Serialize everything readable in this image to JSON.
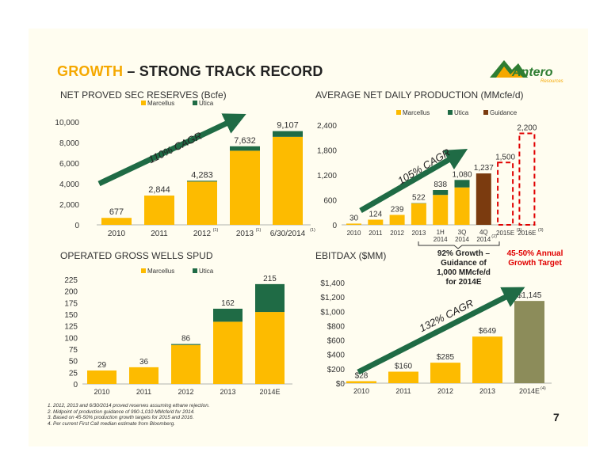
{
  "title": {
    "accent": "GROWTH",
    "rest": " – STRONG TRACK RECORD"
  },
  "logo": {
    "word": "Antero",
    "sub": "Resources"
  },
  "page_number": "7",
  "colors": {
    "marcellus": "#fdbb00",
    "utica": "#1f6b45",
    "guidance": "#7b3b0f",
    "target_red": "#e00000",
    "arrow": "#1f6b45"
  },
  "footnotes": [
    "1.  2012, 2013 and 6/30/2014 proved reserves assuming ethane rejection.",
    "2.  Midpoint of production guidance of 990-1,010 MMcfe/d for 2014.",
    "3.  Based on 45-50% production growth targets for 2015 and 2016.",
    "4.  Per current First Call median estimate from Bloomberg."
  ],
  "annotations": {
    "reserves_cagr": "110% CAGR",
    "production_cagr": "105% CAGR",
    "ebitdax_cagr": "132% CAGR",
    "guidance_note": "92% Growth –\nGuidance of\n1,000 MMcfe/d\nfor 2014E",
    "growth_target": "45-50% Annual\nGrowth Target"
  },
  "chart_data": [
    {
      "id": "reserves",
      "type": "bar",
      "title": "NET PROVED SEC RESERVES (Bcfe)",
      "categories": [
        "2010",
        "2011",
        "2012",
        "2013",
        "6/30/2014"
      ],
      "category_superscripts": [
        "",
        "",
        "(1)",
        "(1)",
        "(1)"
      ],
      "series": [
        {
          "name": "Marcellus",
          "values": [
            677,
            2844,
            4200,
            7200,
            8550
          ]
        },
        {
          "name": "Utica",
          "values": [
            0,
            0,
            83,
            432,
            557
          ]
        }
      ],
      "totals": [
        "677",
        "2,844",
        "4,283",
        "7,632",
        "9,107"
      ],
      "ylim": [
        0,
        10000
      ],
      "yticks": [
        "0",
        "2,000",
        "4,000",
        "6,000",
        "8,000",
        "10,000"
      ],
      "legend": "top"
    },
    {
      "id": "production",
      "type": "bar",
      "title": "AVERAGE NET DAILY PRODUCTION (MMcfe/d)",
      "categories": [
        "2010",
        "2011",
        "2012",
        "2013",
        "1H 2014",
        "3Q 2014",
        "4Q 2014",
        "2015E",
        "2016E"
      ],
      "category_superscripts": [
        "",
        "",
        "",
        "",
        "",
        "",
        "(2)",
        "(3)",
        "(3)"
      ],
      "series": [
        {
          "name": "Marcellus",
          "values": [
            30,
            124,
            239,
            515,
            720,
            900,
            0,
            0,
            0
          ]
        },
        {
          "name": "Utica",
          "values": [
            0,
            0,
            0,
            7,
            118,
            180,
            0,
            0,
            0
          ]
        },
        {
          "name": "Guidance",
          "values": [
            0,
            0,
            0,
            0,
            0,
            0,
            1237,
            0,
            0
          ]
        }
      ],
      "targets": [
        null,
        null,
        null,
        null,
        null,
        null,
        null,
        1500,
        2200
      ],
      "totals": [
        "30",
        "124",
        "239",
        "522",
        "838",
        "1,080",
        "1,237",
        "1,500",
        "2,200"
      ],
      "ylim": [
        0,
        2400
      ],
      "yticks": [
        "0",
        "600",
        "1,200",
        "1,800",
        "2,400"
      ],
      "legend": "top-right"
    },
    {
      "id": "wells",
      "type": "bar",
      "title": "OPERATED GROSS WELLS SPUD",
      "categories": [
        "2010",
        "2011",
        "2012",
        "2013",
        "2014E"
      ],
      "series": [
        {
          "name": "Marcellus",
          "values": [
            29,
            36,
            84,
            134,
            155
          ]
        },
        {
          "name": "Utica",
          "values": [
            0,
            0,
            2,
            28,
            60
          ]
        }
      ],
      "totals": [
        "29",
        "36",
        "86",
        "162",
        "215"
      ],
      "ylim": [
        0,
        225
      ],
      "yticks": [
        "0",
        "25",
        "50",
        "75",
        "100",
        "125",
        "150",
        "175",
        "200",
        "225"
      ],
      "legend": "top"
    },
    {
      "id": "ebitdax",
      "type": "bar",
      "title": "EBITDAX ($MM)",
      "categories": [
        "2010",
        "2011",
        "2012",
        "2013",
        "2014E"
      ],
      "category_superscripts": [
        "",
        "",
        "",
        "",
        "(4)"
      ],
      "values": [
        28,
        160,
        285,
        649,
        1145
      ],
      "totals": [
        "$28",
        "$160",
        "$285",
        "$649",
        "$1,145"
      ],
      "bar_colors": [
        "#fdbb00",
        "#fdbb00",
        "#fdbb00",
        "#fdbb00",
        "#8c8c5a"
      ],
      "ylim": [
        0,
        1400
      ],
      "yticks": [
        "$0",
        "$200",
        "$400",
        "$600",
        "$800",
        "$1,000",
        "$1,200",
        "$1,400"
      ]
    }
  ]
}
